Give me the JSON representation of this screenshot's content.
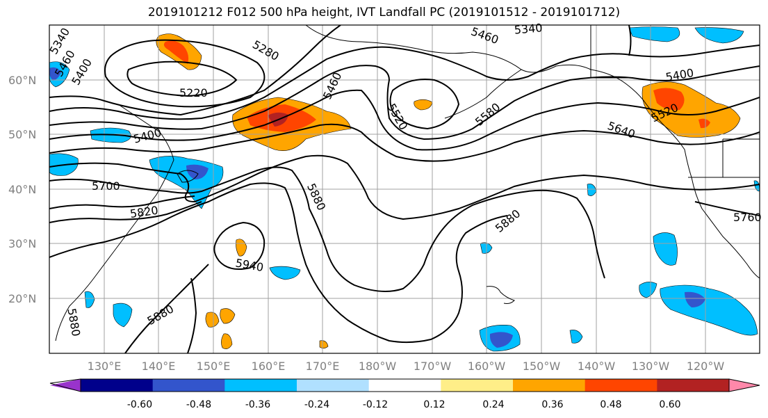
{
  "title": "2019101212 F012 500 hPa height, IVT Landfall PC (2019101512 - 2019101712)",
  "map": {
    "lat_labels": [
      "60°N",
      "50°N",
      "40°N",
      "30°N",
      "20°N"
    ],
    "lon_labels": [
      "130°E",
      "140°E",
      "150°E",
      "160°E",
      "170°E",
      "180°W",
      "170°W",
      "160°W",
      "150°W",
      "140°W",
      "130°W",
      "120°W"
    ],
    "contour_labels": [
      "5340",
      "5460",
      "5400",
      "5340",
      "5280",
      "5220",
      "5460",
      "5460",
      "5520",
      "5580",
      "5640",
      "5400",
      "5520",
      "5400",
      "5700",
      "5820",
      "5880",
      "5880",
      "5940",
      "5880",
      "5880",
      "5760"
    ],
    "gridlines": true
  },
  "colorbar": {
    "colors": [
      "#9933cc",
      "#00008b",
      "#3355cc",
      "#00bfff",
      "#b0e0ff",
      "#ffffff",
      "#ffee88",
      "#ffa500",
      "#ff4500",
      "#b22222",
      "#ff88aa"
    ],
    "tick_labels": [
      "-0.60",
      "-0.48",
      "-0.36",
      "-0.24",
      "-0.12",
      "0.12",
      "0.24",
      "0.36",
      "0.48",
      "0.60"
    ]
  }
}
